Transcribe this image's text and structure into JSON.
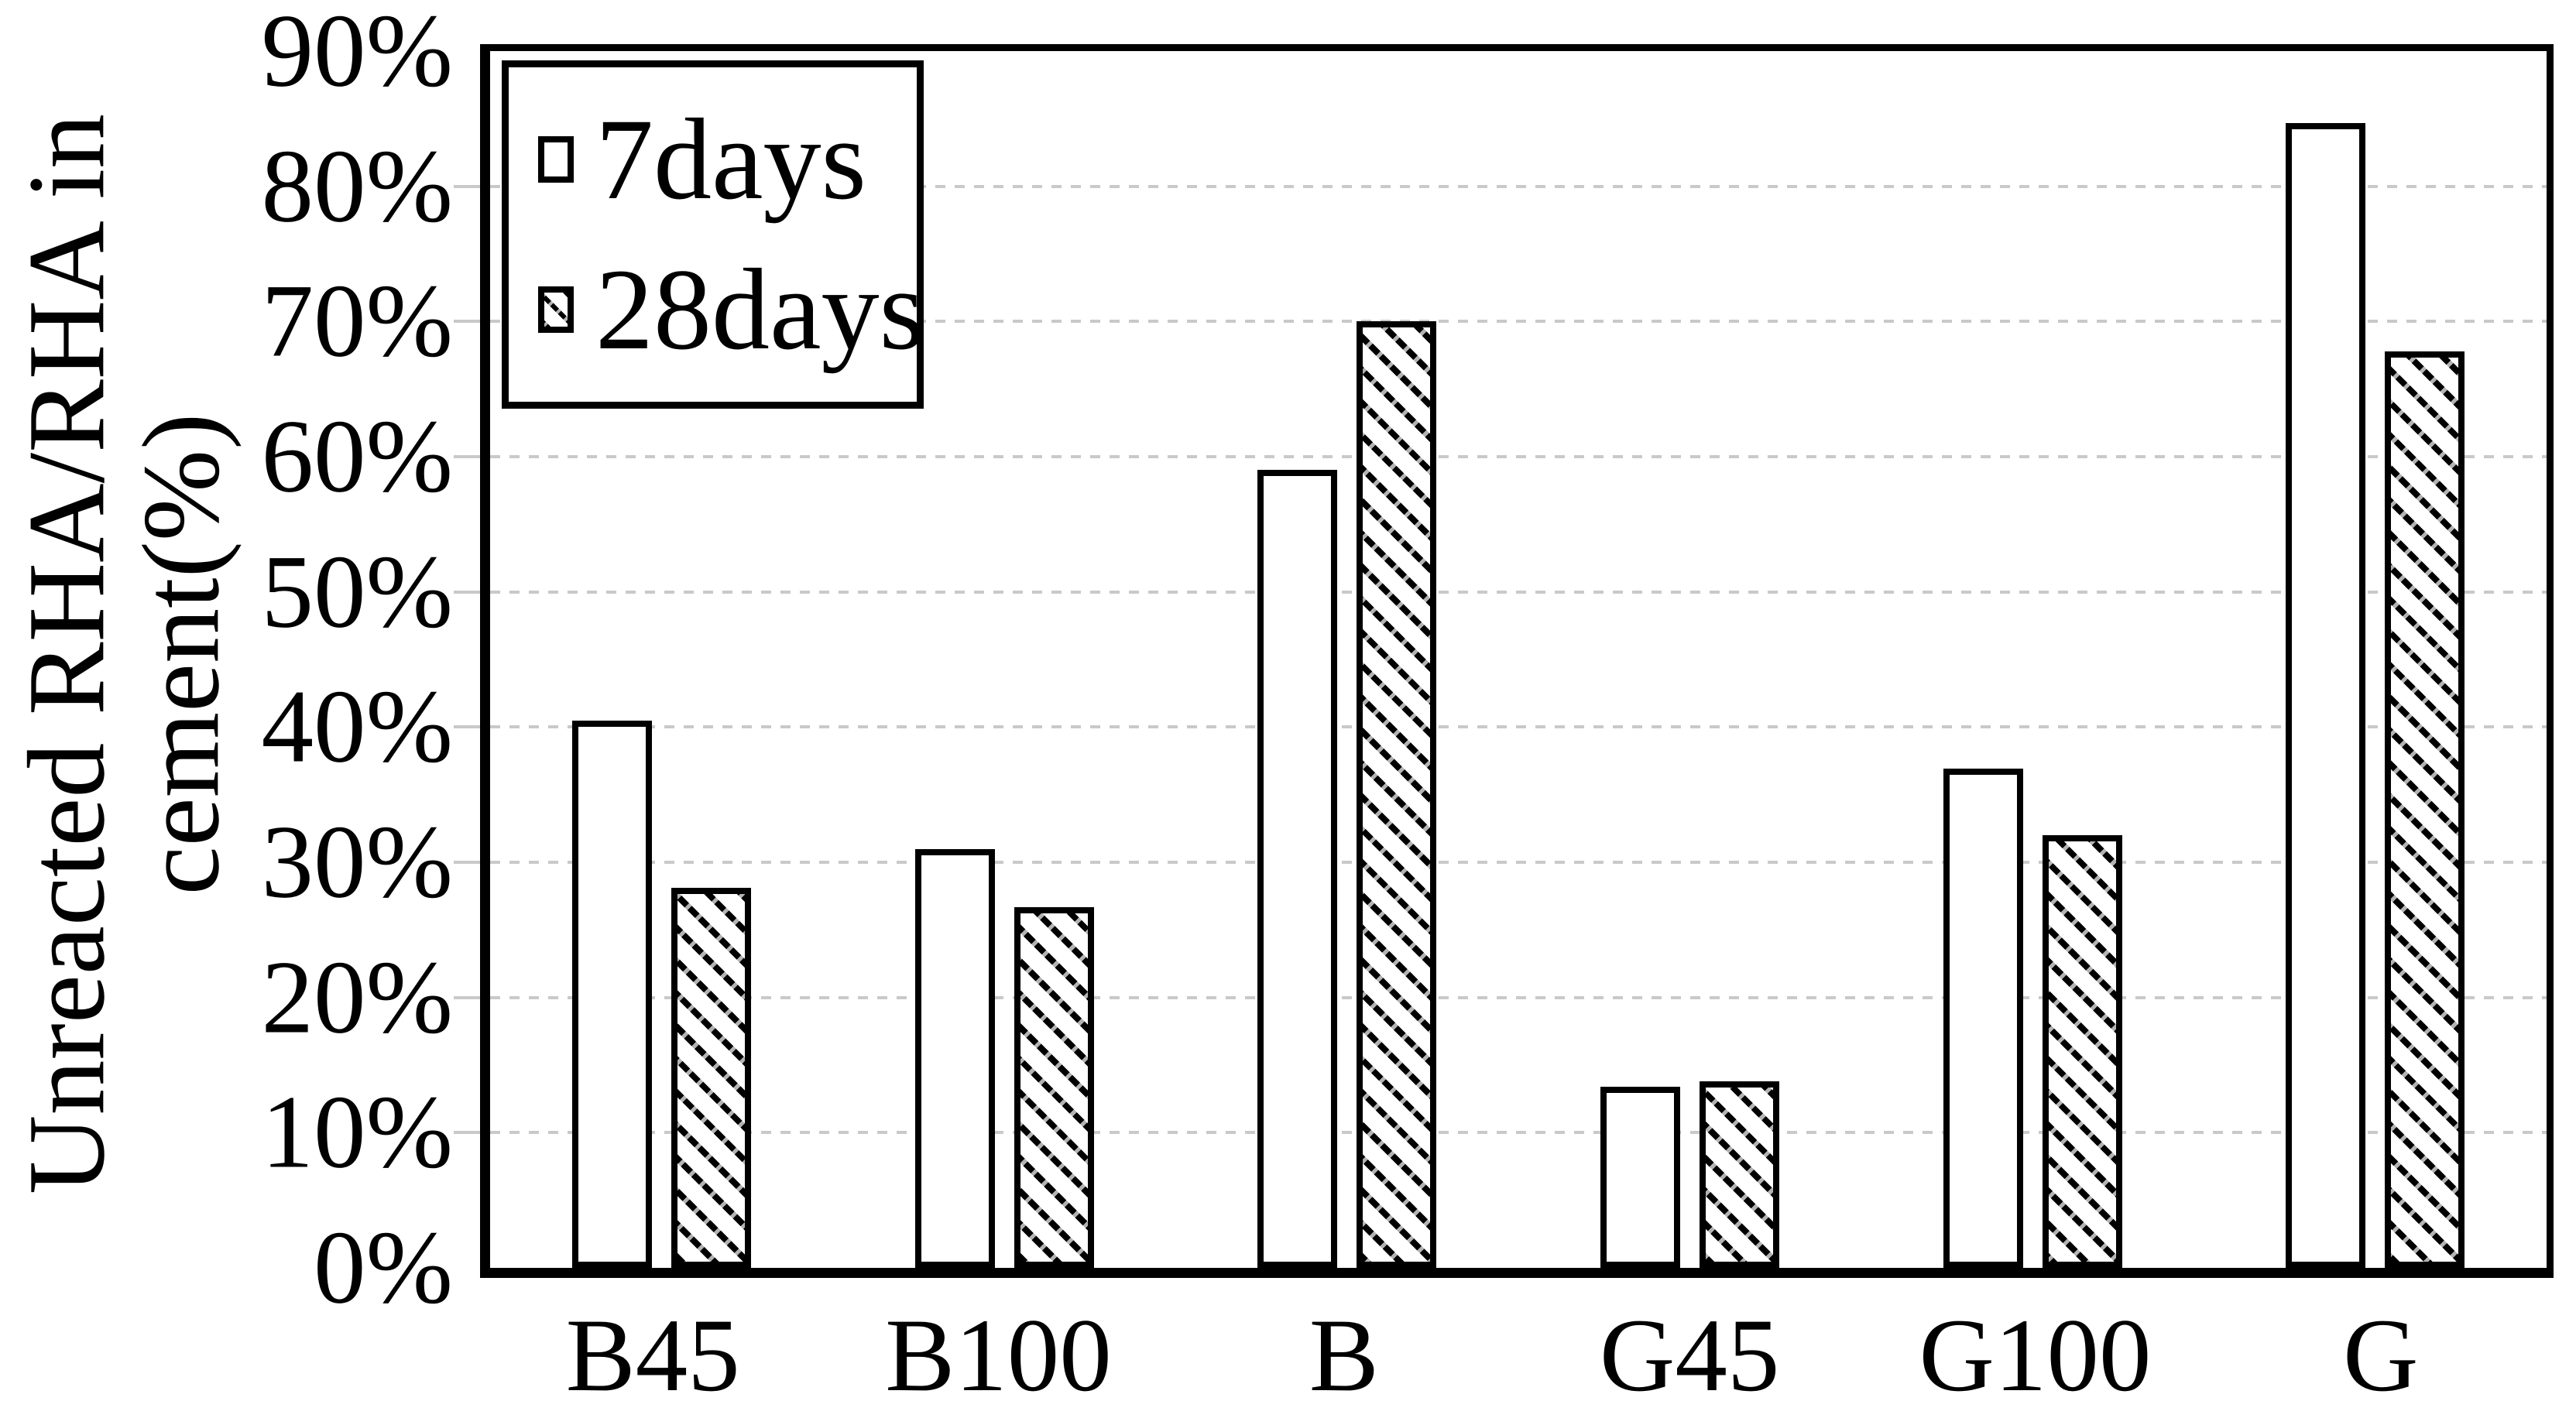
{
  "chart_data": {
    "type": "bar",
    "title": "",
    "ylabel_line1": "Unreacted RHA/RHA in",
    "ylabel_line2": "cement(%)",
    "xlabel": "",
    "categories": [
      "B45",
      "B100",
      "B",
      "G45",
      "G100",
      "G"
    ],
    "series": [
      {
        "name": "7days",
        "pattern": "plain-white",
        "values": [
          40.5,
          31,
          59,
          13.4,
          36.9,
          84.7
        ]
      },
      {
        "name": "28days",
        "pattern": "diagonal-hatch",
        "values": [
          28.1,
          26.7,
          70,
          13.8,
          32,
          67.8
        ]
      }
    ],
    "value_unit": "%",
    "ymin": 0,
    "ymax": 90,
    "ytick_step": 10,
    "yticks": [
      "0%",
      "10%",
      "20%",
      "30%",
      "40%",
      "50%",
      "60%",
      "70%",
      "80%",
      "90%"
    ],
    "grid": "horizontal, light gray dashed, 10%-80%",
    "legend_position": "top-left inside plot"
  },
  "colors": {
    "background": "#ffffff",
    "bar_outline": "#000000",
    "bar_fill_7days": "#ffffff",
    "hatch_color": "#000000",
    "grid": "#c9c9c9",
    "text": "#000000",
    "frame": "#000000"
  }
}
